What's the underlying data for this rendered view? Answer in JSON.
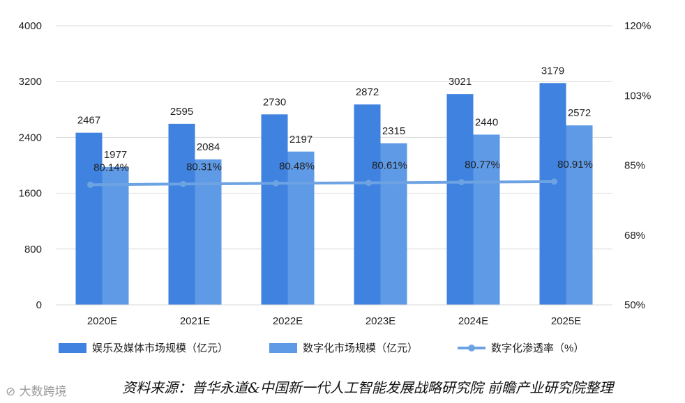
{
  "chart_data": {
    "type": "bar",
    "categories": [
      "2020E",
      "2021E",
      "2022E",
      "2023E",
      "2024E",
      "2025E"
    ],
    "series": [
      {
        "name": "娱乐及媒体市场规模（亿元）",
        "type": "bar",
        "axis": "left",
        "color": "#3f82df",
        "values": [
          2467,
          2595,
          2730,
          2872,
          3021,
          3179
        ]
      },
      {
        "name": "数字化市场规模（亿元）",
        "type": "bar",
        "axis": "left",
        "color": "#5e9ae6",
        "values": [
          1977,
          2084,
          2197,
          2315,
          2440,
          2572
        ]
      },
      {
        "name": "数字化渗透率（%）",
        "type": "line",
        "axis": "right",
        "color": "#6ea3e3",
        "values": [
          80.14,
          80.31,
          80.48,
          80.61,
          80.77,
          80.91
        ],
        "labels": [
          "80.14%",
          "80.31%",
          "80.48%",
          "80.61%",
          "80.77%",
          "80.91%"
        ]
      }
    ],
    "y_left": {
      "ylim": [
        0,
        4000
      ],
      "ticks": [
        "0",
        "800",
        "1600",
        "2400",
        "3200",
        "4000"
      ]
    },
    "y_right": {
      "ylim": [
        50,
        120
      ],
      "ticks": [
        "50%",
        "68%",
        "85%",
        "103%",
        "120%"
      ]
    },
    "grid": true,
    "legend_position": "bottom"
  },
  "source_text": "资料来源：普华永道&中国新一代人工智能发展战略研究院 前瞻产业研究院整理",
  "watermark_text": "大数跨境"
}
